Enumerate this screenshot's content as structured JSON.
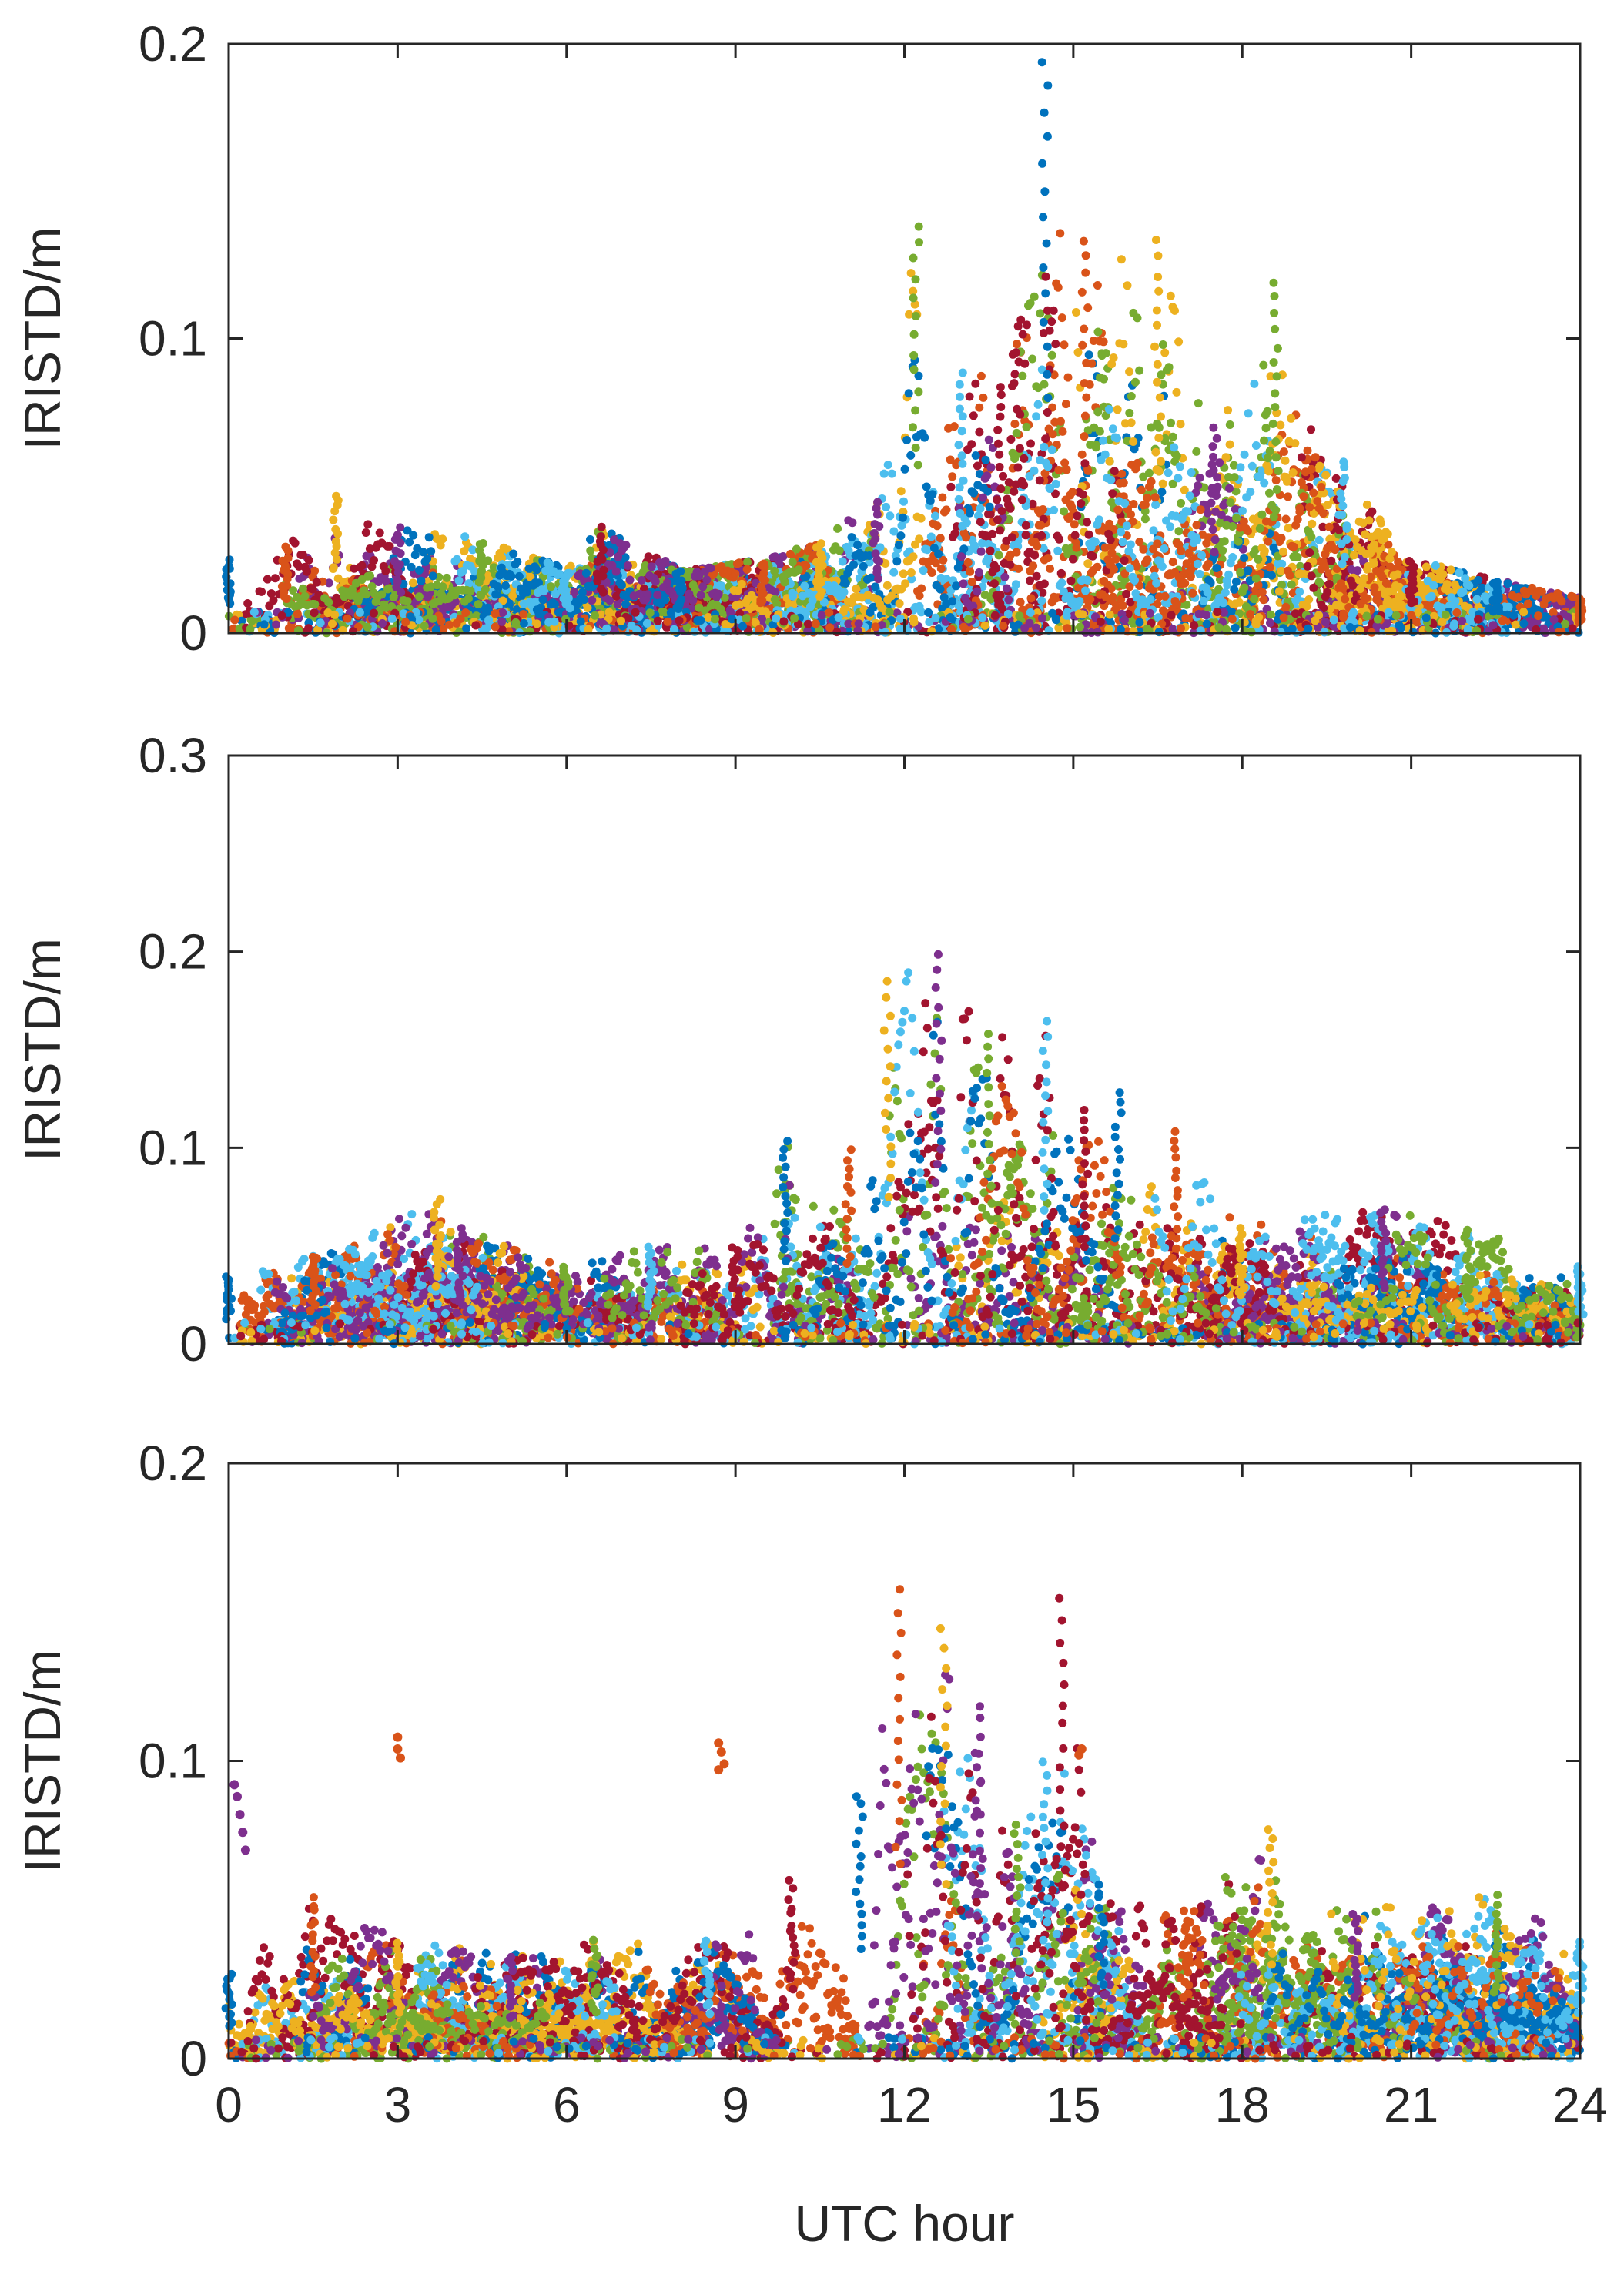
{
  "chart_data": [
    {
      "type": "scatter",
      "panel": "top",
      "title": "",
      "xlabel": "",
      "ylabel": "IRISTD/m",
      "xlim": [
        0,
        24
      ],
      "ylim": [
        0,
        0.2
      ],
      "xticks": [
        0,
        3,
        6,
        9,
        12,
        15,
        18,
        21,
        24
      ],
      "yticks": [
        0,
        0.1,
        0.2
      ],
      "ytick_labels": [
        "0",
        "0.1",
        "0.2"
      ],
      "show_xtick_labels": false,
      "grid": false,
      "baseline": 0.012,
      "envelope": [
        {
          "x": 0,
          "y": 0.025
        },
        {
          "x": 1,
          "y": 0.03
        },
        {
          "x": 1.9,
          "y": 0.048
        },
        {
          "x": 3,
          "y": 0.036
        },
        {
          "x": 4.5,
          "y": 0.032
        },
        {
          "x": 6,
          "y": 0.022
        },
        {
          "x": 6.6,
          "y": 0.036
        },
        {
          "x": 8,
          "y": 0.022
        },
        {
          "x": 9.5,
          "y": 0.025
        },
        {
          "x": 10.5,
          "y": 0.032
        },
        {
          "x": 11.5,
          "y": 0.045
        },
        {
          "x": 12.2,
          "y": 0.14
        },
        {
          "x": 13,
          "y": 0.09
        },
        {
          "x": 13.7,
          "y": 0.085
        },
        {
          "x": 14.5,
          "y": 0.195
        },
        {
          "x": 15.2,
          "y": 0.135
        },
        {
          "x": 16.5,
          "y": 0.135
        },
        {
          "x": 17.5,
          "y": 0.07
        },
        {
          "x": 18.6,
          "y": 0.12
        },
        {
          "x": 19.8,
          "y": 0.06
        },
        {
          "x": 21,
          "y": 0.025
        },
        {
          "x": 22.5,
          "y": 0.018
        },
        {
          "x": 24,
          "y": 0.012
        }
      ],
      "outliers": []
    },
    {
      "type": "scatter",
      "panel": "middle",
      "title": "",
      "xlabel": "",
      "ylabel": "IRISTD/m",
      "xlim": [
        0,
        24
      ],
      "ylim": [
        0,
        0.3
      ],
      "xticks": [
        0,
        3,
        6,
        9,
        12,
        15,
        18,
        21,
        24
      ],
      "yticks": [
        0,
        0.1,
        0.2,
        0.3
      ],
      "ytick_labels": [
        "0",
        "0.1",
        "0.2",
        "0.3"
      ],
      "show_xtick_labels": false,
      "grid": false,
      "baseline": 0.018,
      "envelope": [
        {
          "x": 0,
          "y": 0.035
        },
        {
          "x": 1.5,
          "y": 0.045
        },
        {
          "x": 3.7,
          "y": 0.075
        },
        {
          "x": 4.1,
          "y": 0.06
        },
        {
          "x": 6,
          "y": 0.04
        },
        {
          "x": 7.5,
          "y": 0.05
        },
        {
          "x": 9,
          "y": 0.05
        },
        {
          "x": 9.9,
          "y": 0.105
        },
        {
          "x": 11,
          "y": 0.1
        },
        {
          "x": 11.7,
          "y": 0.185
        },
        {
          "x": 12.6,
          "y": 0.2
        },
        {
          "x": 13.5,
          "y": 0.16
        },
        {
          "x": 14.5,
          "y": 0.165
        },
        {
          "x": 15.2,
          "y": 0.12
        },
        {
          "x": 15.8,
          "y": 0.13
        },
        {
          "x": 16.8,
          "y": 0.11
        },
        {
          "x": 18,
          "y": 0.06
        },
        {
          "x": 20.5,
          "y": 0.07
        },
        {
          "x": 22,
          "y": 0.06
        },
        {
          "x": 24,
          "y": 0.04
        }
      ],
      "outliers": []
    },
    {
      "type": "scatter",
      "panel": "bottom",
      "title": "",
      "xlabel": "UTC hour",
      "ylabel": "IRISTD/m",
      "xlim": [
        0,
        24
      ],
      "ylim": [
        0,
        0.2
      ],
      "xticks": [
        0,
        3,
        6,
        9,
        12,
        15,
        18,
        21,
        24
      ],
      "xtick_labels": [
        "0",
        "3",
        "6",
        "9",
        "12",
        "15",
        "18",
        "21",
        "24"
      ],
      "yticks": [
        0,
        0.1,
        0.2
      ],
      "ytick_labels": [
        "0",
        "0.1",
        "0.2"
      ],
      "show_xtick_labels": true,
      "grid": false,
      "baseline": 0.012,
      "envelope": [
        {
          "x": 0,
          "y": 0.03
        },
        {
          "x": 1.5,
          "y": 0.055
        },
        {
          "x": 3,
          "y": 0.04
        },
        {
          "x": 5,
          "y": 0.035
        },
        {
          "x": 6.5,
          "y": 0.04
        },
        {
          "x": 8.5,
          "y": 0.04
        },
        {
          "x": 10,
          "y": 0.06
        },
        {
          "x": 11.2,
          "y": 0.09
        },
        {
          "x": 11.9,
          "y": 0.158
        },
        {
          "x": 12.7,
          "y": 0.145
        },
        {
          "x": 13.3,
          "y": 0.12
        },
        {
          "x": 14,
          "y": 0.08
        },
        {
          "x": 14.5,
          "y": 0.1
        },
        {
          "x": 14.8,
          "y": 0.155
        },
        {
          "x": 15.5,
          "y": 0.06
        },
        {
          "x": 17,
          "y": 0.05
        },
        {
          "x": 18.5,
          "y": 0.078
        },
        {
          "x": 20,
          "y": 0.05
        },
        {
          "x": 22.5,
          "y": 0.055
        },
        {
          "x": 24,
          "y": 0.04
        }
      ],
      "outliers": [
        {
          "x": 0.1,
          "y": 0.092
        },
        {
          "x": 0.15,
          "y": 0.088
        },
        {
          "x": 0.2,
          "y": 0.082
        },
        {
          "x": 0.25,
          "y": 0.076
        },
        {
          "x": 0.3,
          "y": 0.07
        },
        {
          "x": 3.0,
          "y": 0.108
        },
        {
          "x": 3.0,
          "y": 0.104
        },
        {
          "x": 3.05,
          "y": 0.101
        },
        {
          "x": 8.7,
          "y": 0.106
        },
        {
          "x": 8.75,
          "y": 0.103
        },
        {
          "x": 8.8,
          "y": 0.099
        },
        {
          "x": 8.7,
          "y": 0.097
        },
        {
          "x": 15.1,
          "y": 0.102
        },
        {
          "x": 15.15,
          "y": 0.104
        }
      ]
    }
  ],
  "series_colors": [
    "#0072BD",
    "#D95319",
    "#EDB120",
    "#7E2F8E",
    "#77AC30",
    "#4DBEEE",
    "#A2142F"
  ],
  "ui": {
    "xlabel": "UTC hour",
    "ylabel": "IRISTD/m"
  }
}
